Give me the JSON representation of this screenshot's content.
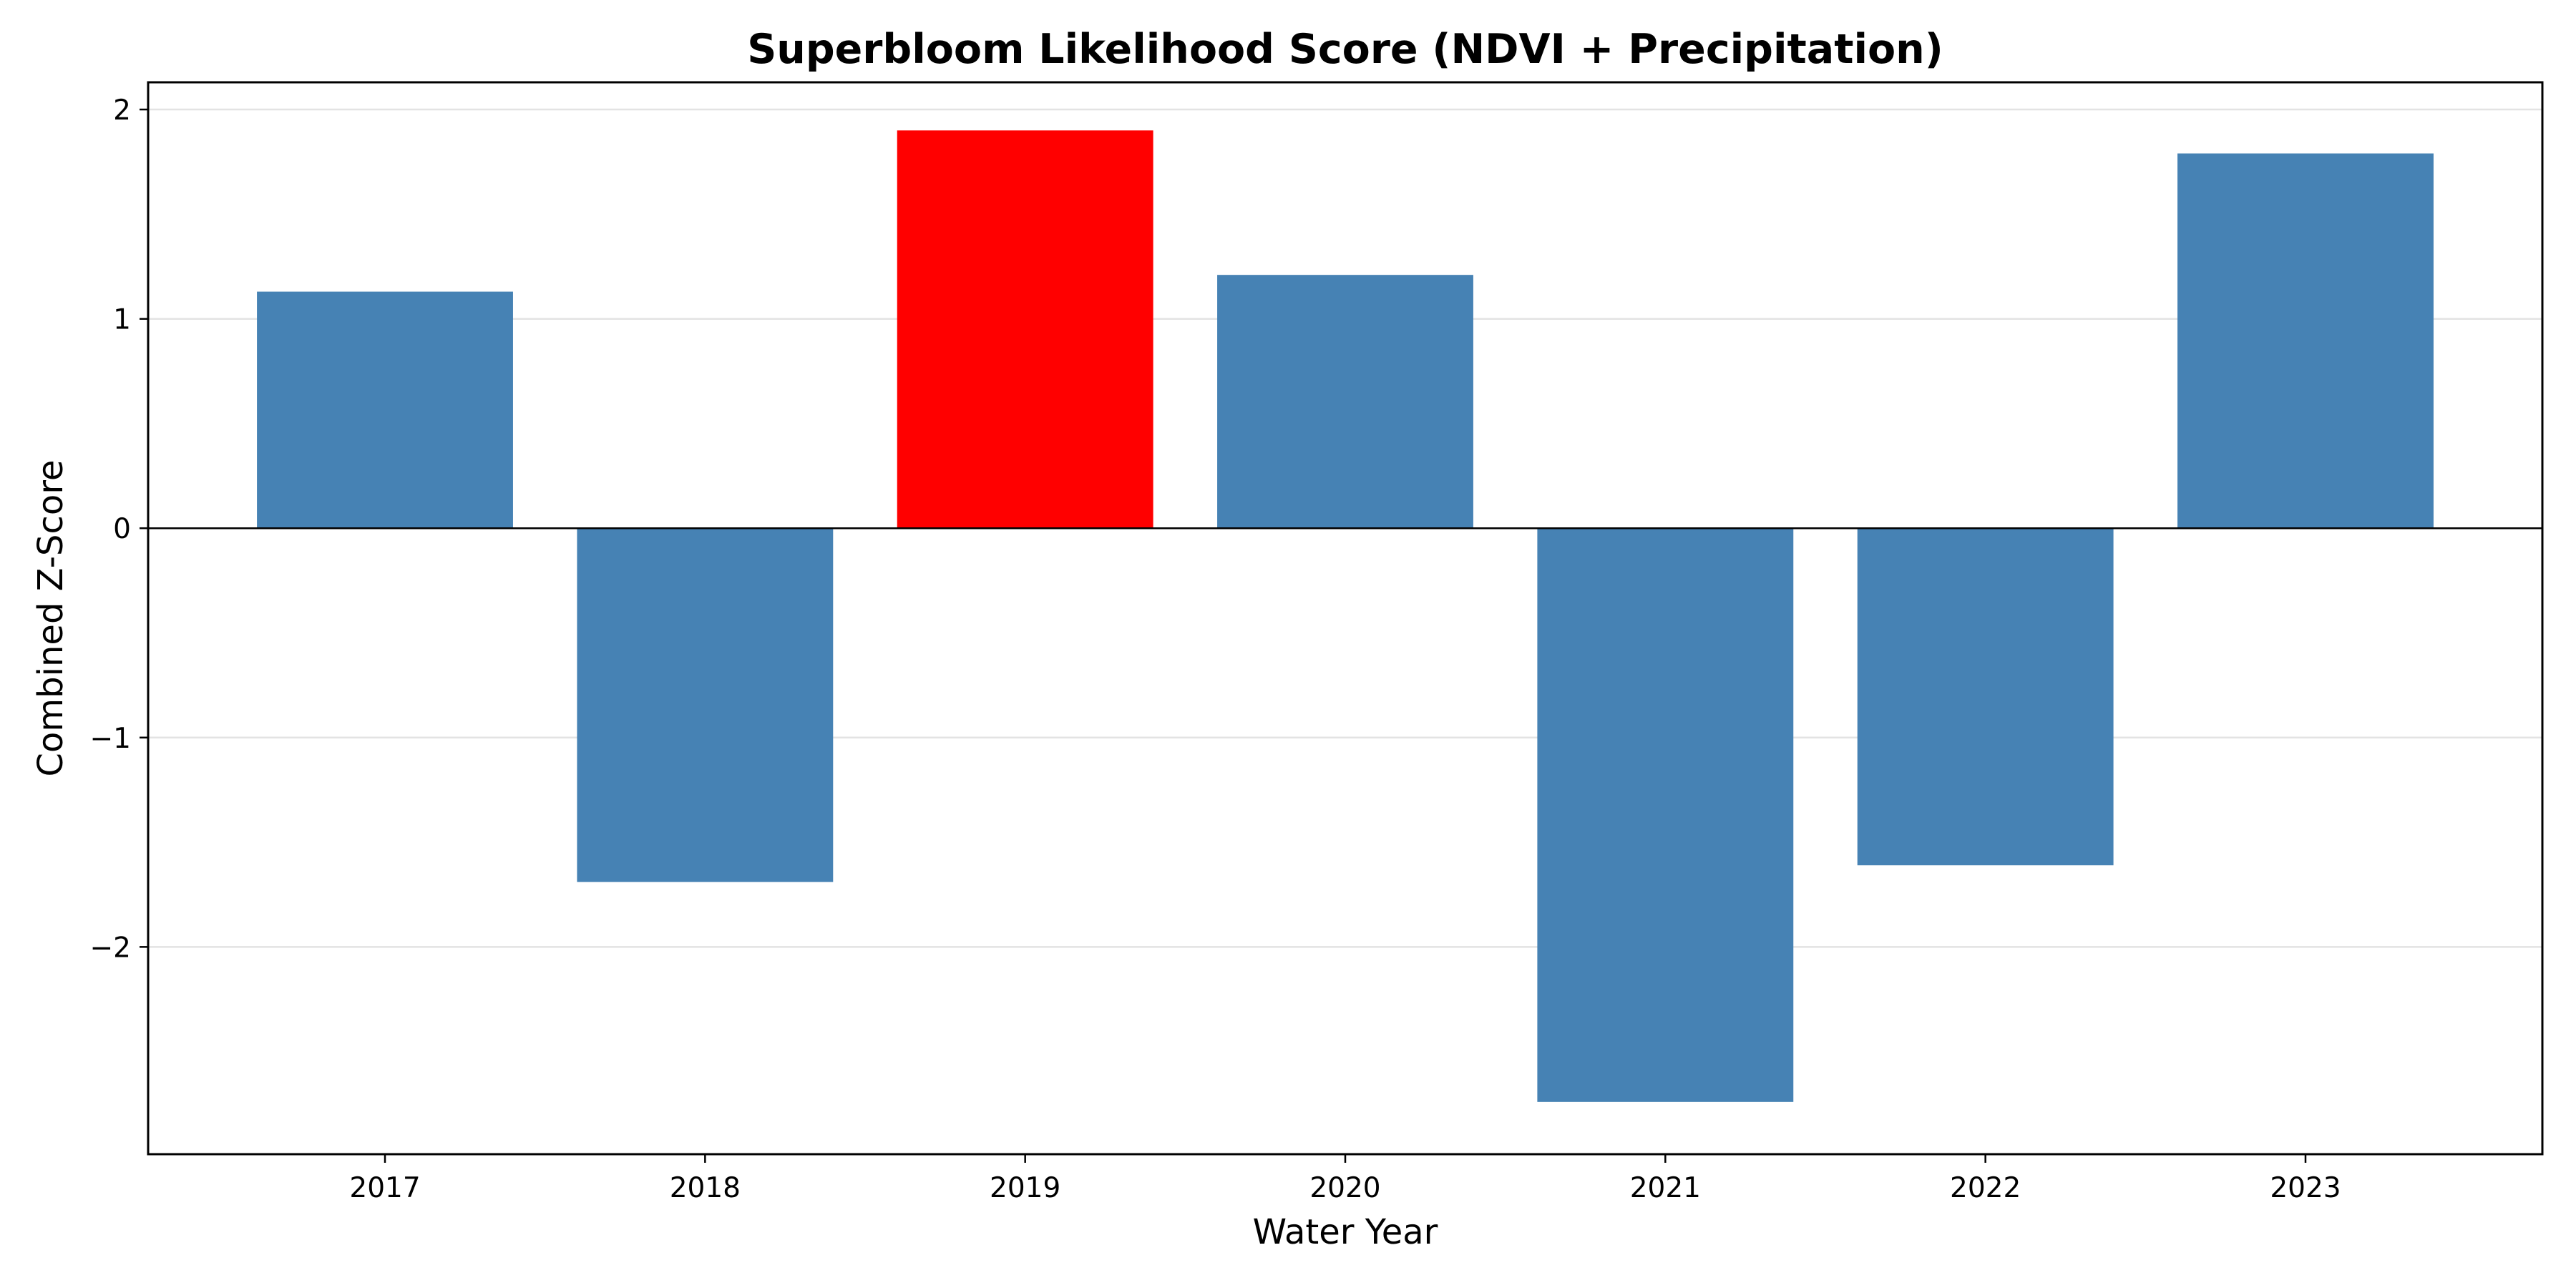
{
  "chart_data": {
    "type": "bar",
    "title": "Superbloom Likelihood Score (NDVI + Precipitation)",
    "xlabel": "Water Year",
    "ylabel": "Combined Z-Score",
    "categories": [
      "2017",
      "2018",
      "2019",
      "2020",
      "2021",
      "2022",
      "2023"
    ],
    "values": [
      1.13,
      -1.69,
      1.9,
      1.21,
      -2.74,
      -1.61,
      1.79
    ],
    "bar_colors": [
      "#4682b4",
      "#4682b4",
      "#ff0000",
      "#4682b4",
      "#4682b4",
      "#4682b4",
      "#4682b4"
    ],
    "default_color": "#4682b4",
    "highlight_color": "#ff0000",
    "ylim": [
      -2.99,
      2.13
    ],
    "yticks": [
      2,
      1,
      0,
      -1,
      -2
    ],
    "ytick_labels": [
      "2",
      "1",
      "0",
      "−1",
      "−2"
    ],
    "grid": "horizontal",
    "zero_line": true,
    "legend": "none"
  }
}
